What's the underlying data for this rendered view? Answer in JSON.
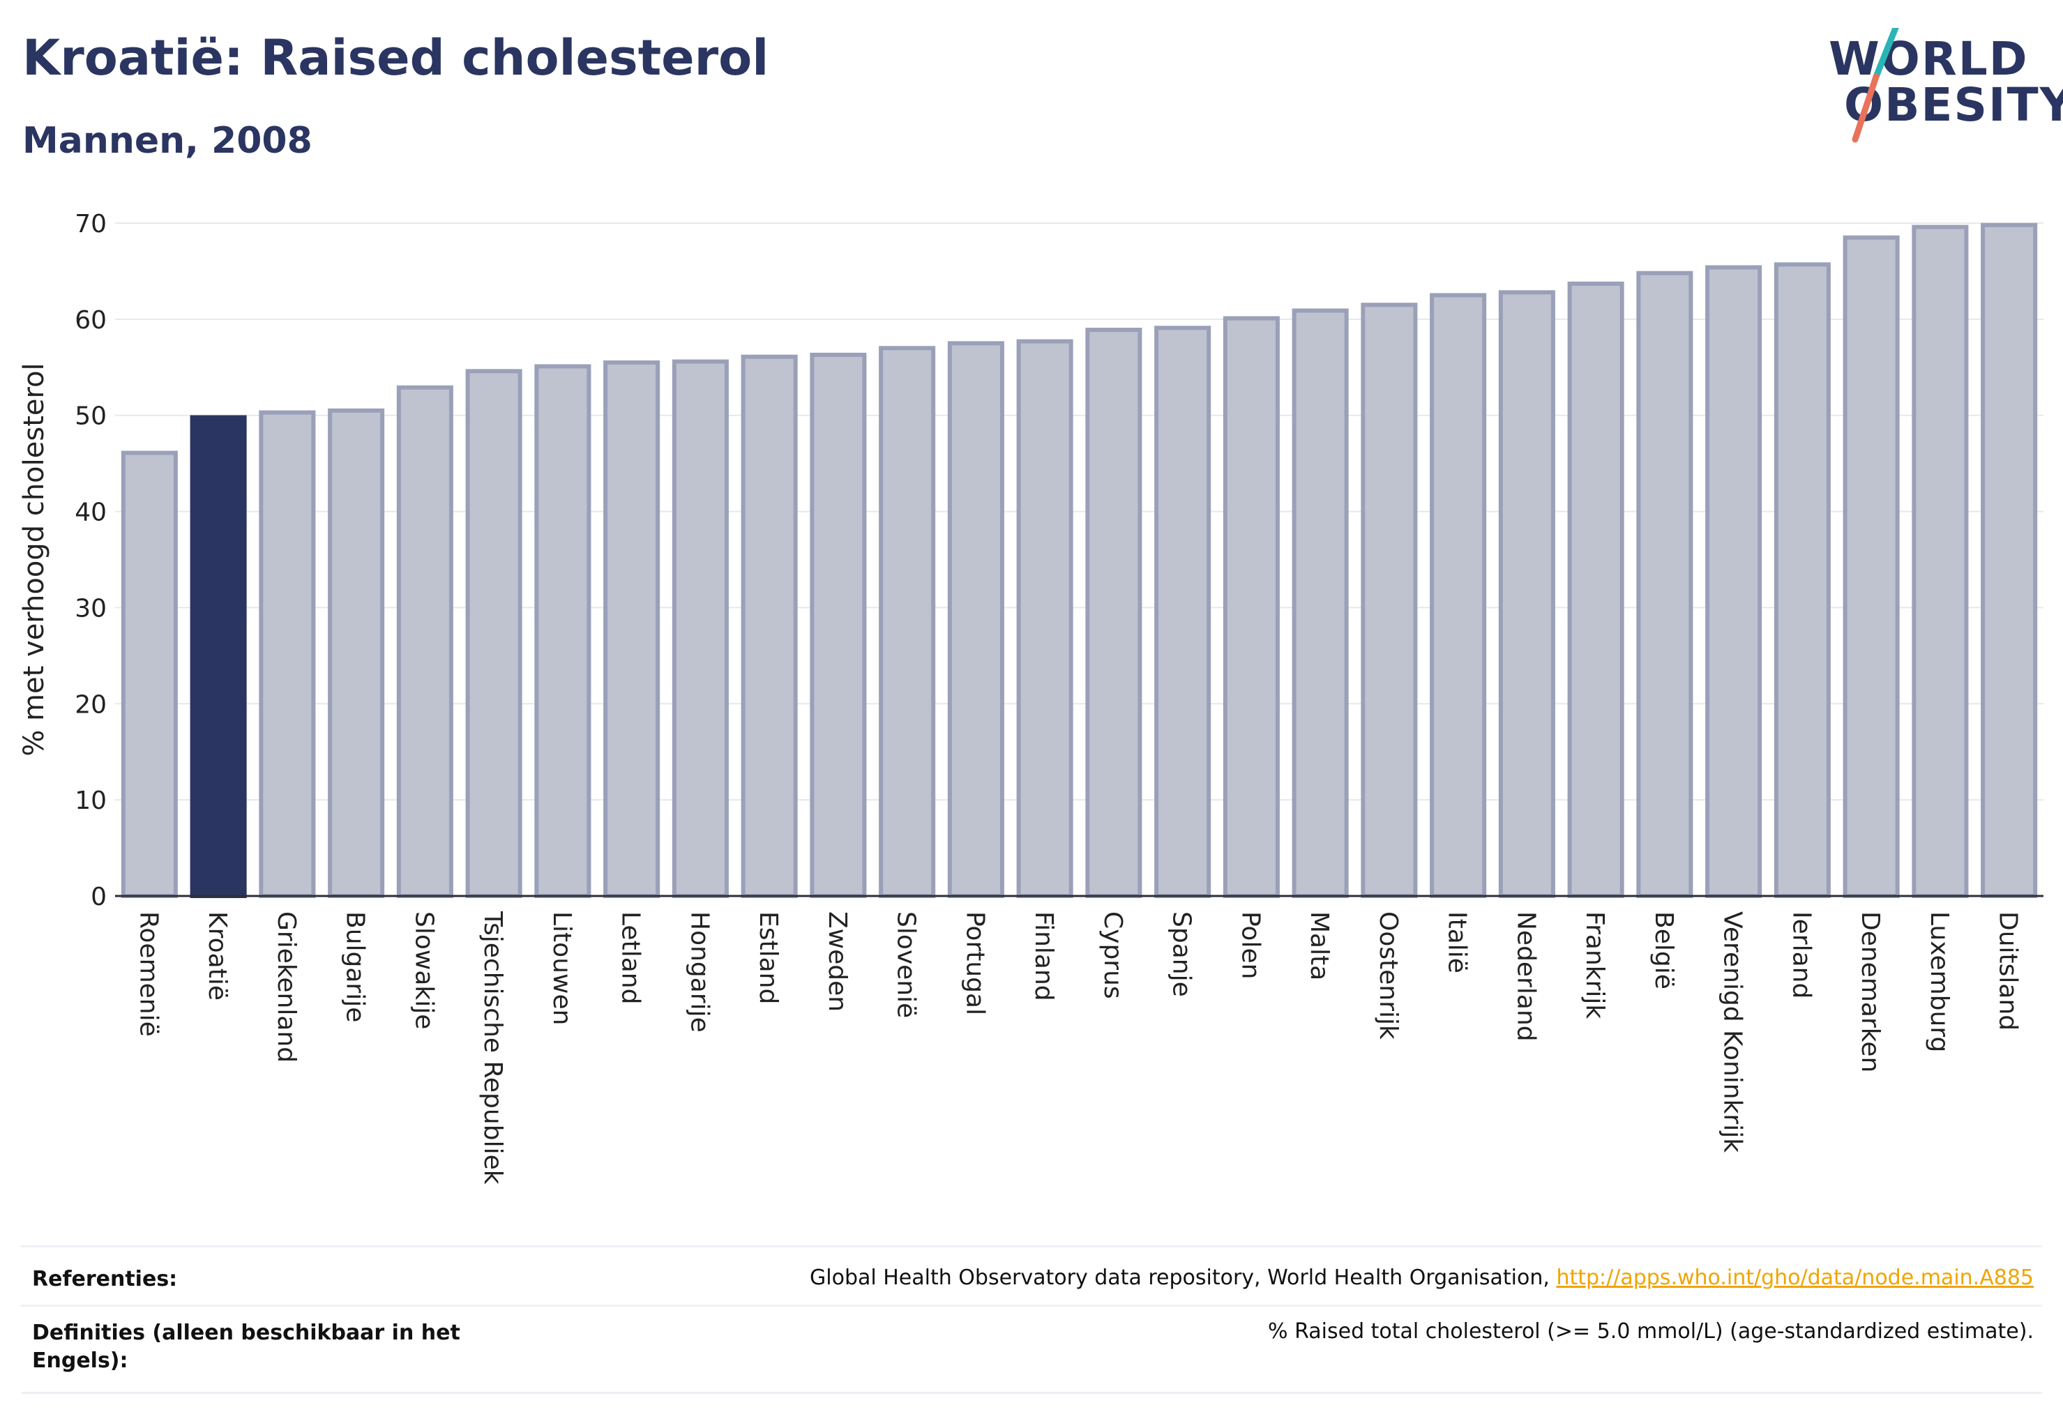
{
  "header": {
    "title": "Kroatië: Raised cholesterol",
    "subtitle": "Mannen, 2008"
  },
  "logo": {
    "line1": "WORLD",
    "line2": "OBESITY"
  },
  "colors": {
    "highlight": "#2b3561",
    "bar_fill": "#bfc3d0",
    "bar_stroke": "#9aa0b8",
    "logo_slash_top": "#2ab5b5",
    "logo_slash_bottom": "#e8735a",
    "link": "#f0a500"
  },
  "chart_data": {
    "type": "bar",
    "ylabel": "% met verhoogd cholesterol",
    "ylim": [
      0,
      70
    ],
    "yticks": [
      0,
      10,
      20,
      30,
      40,
      50,
      60,
      70
    ],
    "grid": true,
    "highlight": "Kroatië",
    "categories": [
      "Roemenië",
      "Kroatië",
      "Griekenland",
      "Bulgarije",
      "Slowakije",
      "Tsjechische Republiek",
      "Litouwen",
      "Letland",
      "Hongarije",
      "Estland",
      "Zweden",
      "Slovenië",
      "Portugal",
      "Finland",
      "Cyprus",
      "Spanje",
      "Polen",
      "Malta",
      "Oostenrijk",
      "Italië",
      "Nederland",
      "Frankrijk",
      "België",
      "Verenigd Koninkrijk",
      "Ierland",
      "Denemarken",
      "Luxemburg",
      "Duitsland"
    ],
    "values": [
      46.1,
      49.8,
      50.3,
      50.5,
      52.9,
      54.6,
      55.1,
      55.5,
      55.6,
      56.1,
      56.3,
      57.0,
      57.5,
      57.7,
      58.9,
      59.1,
      60.1,
      60.9,
      61.5,
      62.5,
      62.8,
      63.7,
      64.8,
      65.4,
      65.7,
      68.5,
      69.6,
      69.8
    ]
  },
  "references": {
    "ref_label": "Referenties:",
    "ref_text": "Global Health Observatory data repository, World Health Organisation, ",
    "ref_link": "http://apps.who.int/gho/data/node.main.A885",
    "def_label": "Definities (alleen beschikbaar in het Engels):",
    "def_text": "% Raised total cholesterol (>= 5.0 mmol/L) (age-standardized estimate)."
  }
}
